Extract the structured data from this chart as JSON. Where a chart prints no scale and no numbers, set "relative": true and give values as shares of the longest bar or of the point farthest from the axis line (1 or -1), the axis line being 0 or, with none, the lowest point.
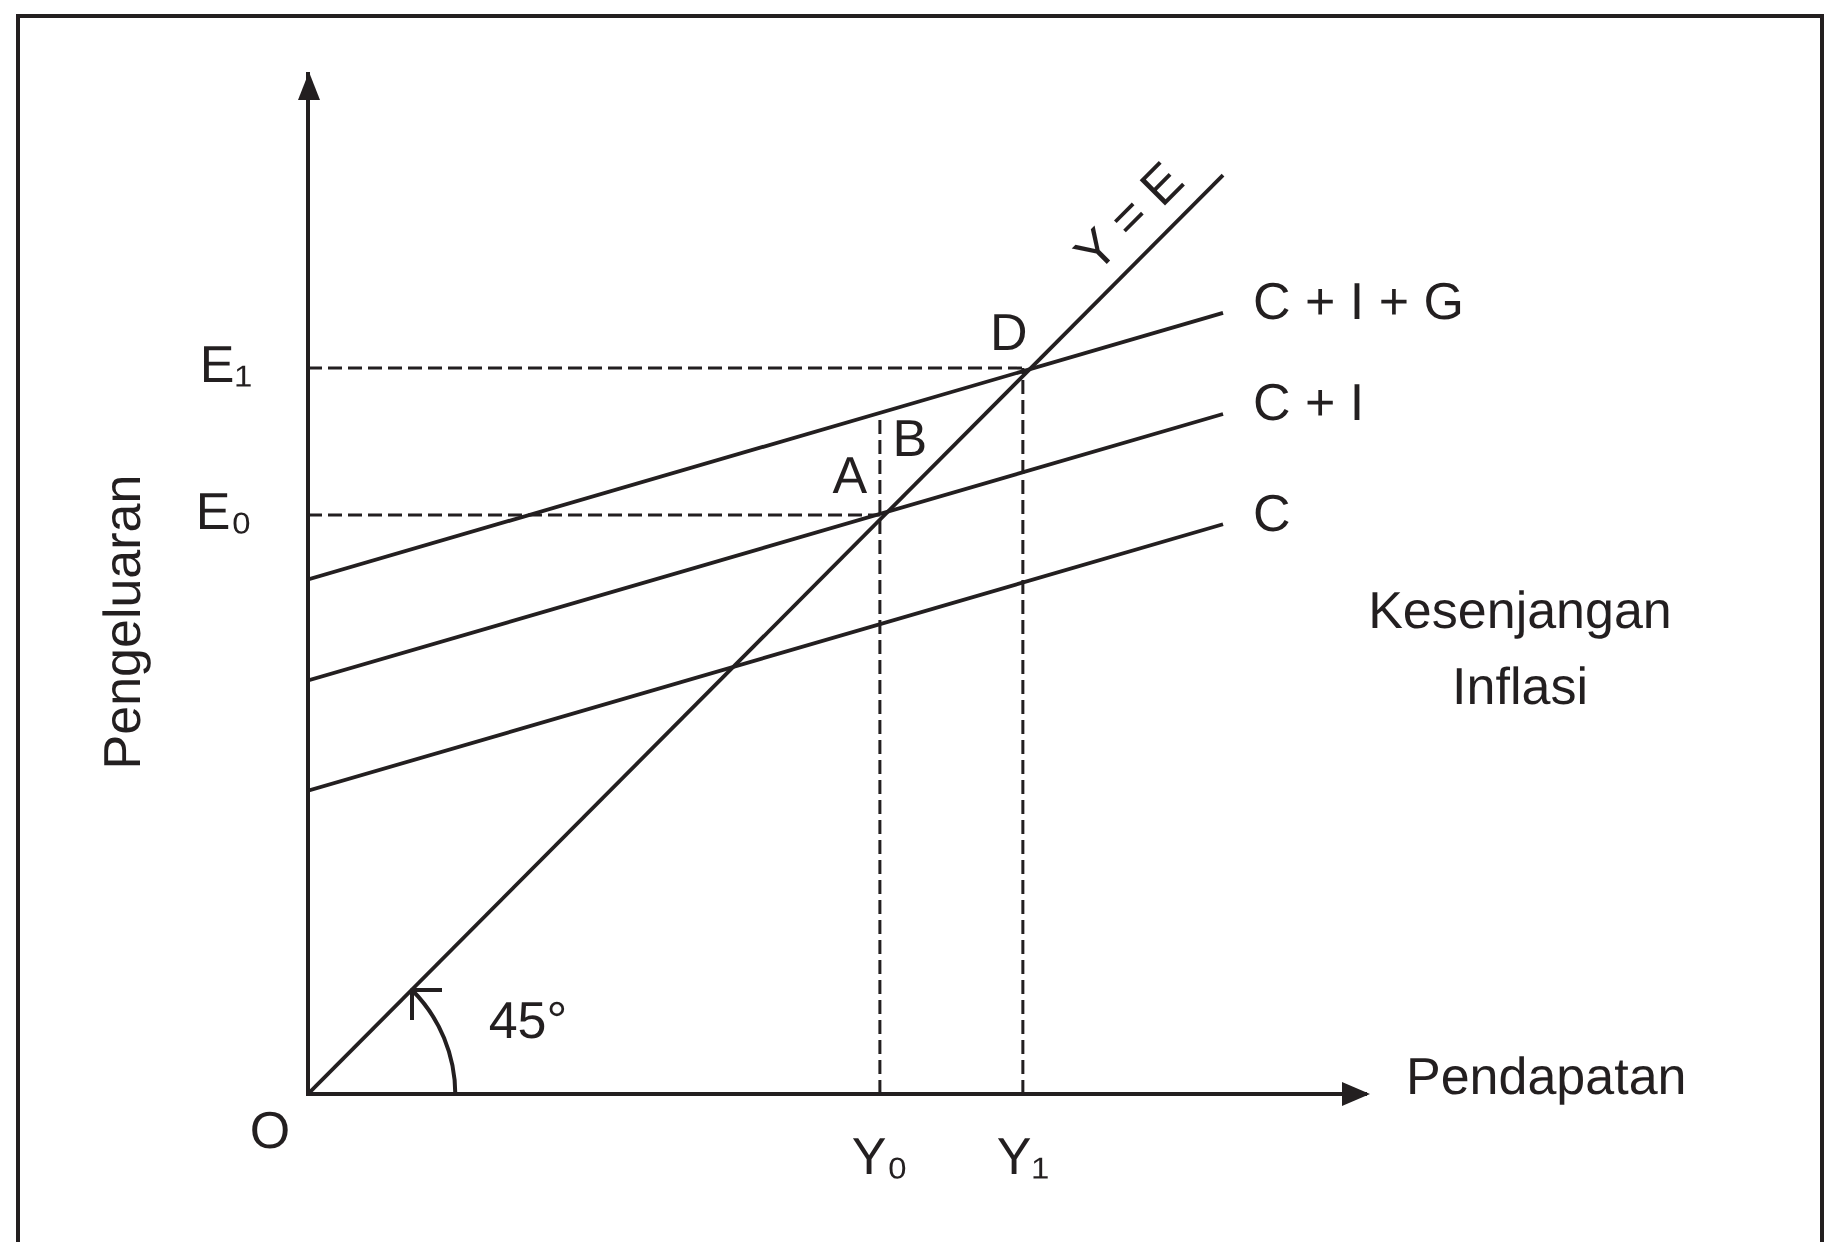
{
  "chart_data": {
    "type": "line",
    "relative": true,
    "xlabel": "Pendapatan",
    "ylabel": "Pengeluaran",
    "categories": [
      null,
      null,
      null,
      null,
      null,
      null,
      null,
      null,
      null,
      null,
      null,
      null,
      null,
      null,
      null,
      null,
      null,
      null,
      null,
      null,
      "Y₀",
      null,
      null,
      null,
      null,
      "Y₁",
      null,
      null,
      null,
      null,
      null,
      null,
      null,
      null,
      null,
      null,
      null,
      null
    ],
    "line_style": "solid",
    "series": [
      {
        "name": "C + I + G",
        "color": "#231f20",
        "values": [
          0.56,
          null,
          null,
          null,
          null,
          null,
          null,
          null,
          null,
          null,
          null,
          null,
          null,
          null,
          null,
          null,
          null,
          null,
          null,
          null,
          null,
          null,
          null,
          null,
          null,
          null,
          null,
          null,
          null,
          null,
          null,
          null,
          0.85,
          null,
          null,
          null,
          null,
          null
        ]
      },
      {
        "name": "C + I",
        "color": "#231f20",
        "values": [
          0.45,
          null,
          null,
          null,
          null,
          null,
          null,
          null,
          null,
          null,
          null,
          null,
          null,
          null,
          null,
          null,
          null,
          null,
          null,
          null,
          null,
          null,
          null,
          null,
          null,
          null,
          null,
          null,
          null,
          null,
          null,
          null,
          0.74,
          null,
          null,
          null,
          null,
          null
        ]
      },
      {
        "name": "C",
        "color": "#231f20",
        "values": [
          0.33,
          null,
          null,
          null,
          null,
          null,
          null,
          null,
          null,
          null,
          null,
          null,
          null,
          null,
          null,
          null,
          null,
          null,
          null,
          null,
          null,
          null,
          null,
          null,
          null,
          null,
          null,
          null,
          null,
          null,
          null,
          null,
          0.62,
          null,
          null,
          null,
          null,
          null
        ]
      },
      {
        "name": "Y = E",
        "color": "#231f20",
        "values": [
          0,
          null,
          null,
          null,
          null,
          null,
          null,
          null,
          null,
          null,
          null,
          null,
          null,
          null,
          null,
          null,
          null,
          null,
          null,
          null,
          null,
          null,
          null,
          null,
          null,
          null,
          null,
          null,
          null,
          null,
          null,
          null,
          1,
          null,
          null,
          null,
          null,
          null
        ]
      },
      {
        "color": "#231f20",
        "line_style": "dashed",
        "values": [
          0.79,
          null,
          null,
          null,
          null,
          null,
          null,
          null,
          null,
          null,
          null,
          null,
          null,
          null,
          null,
          null,
          null,
          null,
          null,
          null,
          null,
          null,
          null,
          null,
          null,
          0.79,
          null,
          null,
          null,
          null,
          null,
          null,
          null,
          null,
          null,
          null,
          null,
          null
        ]
      },
      {
        "color": "#231f20",
        "line_style": "dashed",
        "values": [
          0.63,
          null,
          null,
          null,
          null,
          null,
          null,
          null,
          null,
          null,
          null,
          null,
          null,
          null,
          null,
          null,
          null,
          null,
          null,
          null,
          0.63,
          null,
          null,
          null,
          null,
          null,
          null,
          null,
          null,
          null,
          null,
          null,
          null,
          null,
          null,
          null,
          null,
          null
        ]
      },
      {
        "color": "#231f20",
        "line_style": "dashed",
        "x": [
          "Y₁",
          "Y₁"
        ],
        "values": [
          0,
          0.79
        ]
      },
      {
        "color": "#231f20",
        "line_style": "dashed",
        "x": [
          "Y₀",
          "Y₀"
        ],
        "values": [
          0,
          0.74
        ]
      }
    ],
    "annotations": [
      {
        "text": "A",
        "x": "Y₀",
        "y": 0.63
      },
      {
        "text": "B",
        "x": "Y₀",
        "y": 0.74
      },
      {
        "text": "D",
        "x": "Y₁",
        "y": 0.79
      },
      "O",
      "E₀",
      "E₁",
      "45°",
      "Kesenjangan Inflasi"
    ]
  }
}
